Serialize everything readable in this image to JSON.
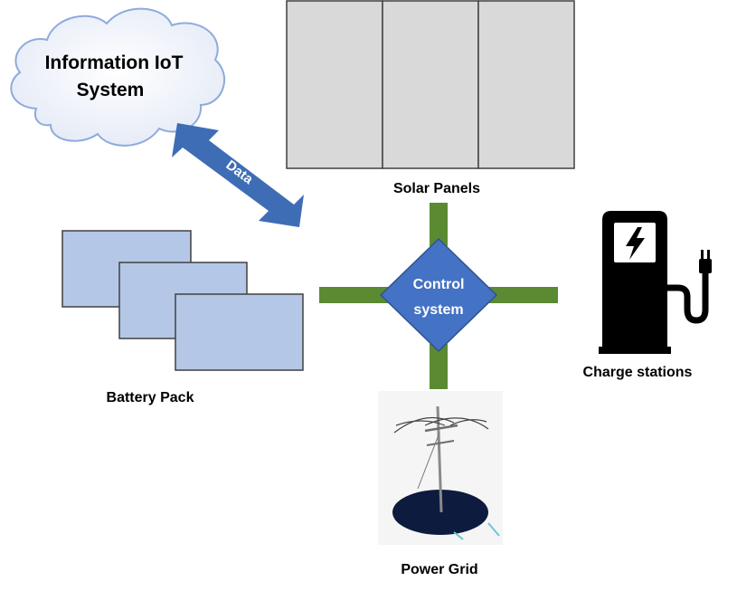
{
  "cloud": {
    "line1": "Information IoT",
    "line2": "System"
  },
  "data_arrow": {
    "label": "Data"
  },
  "solar": {
    "label": "Solar Panels"
  },
  "battery": {
    "label": "Battery Pack"
  },
  "control": {
    "line1": "Control",
    "line2": "system"
  },
  "charge": {
    "label": "Charge stations"
  },
  "grid": {
    "label": "Power Grid"
  },
  "colors": {
    "connector_green": "#5b8a33",
    "control_blue": "#4472c4",
    "battery_fill": "#b4c7e7",
    "solar_fill": "#d9d9d9",
    "arrow_blue": "#3e6db5",
    "cloud_fill": "#f2f5fb",
    "cloud_stroke": "#8faadc"
  }
}
